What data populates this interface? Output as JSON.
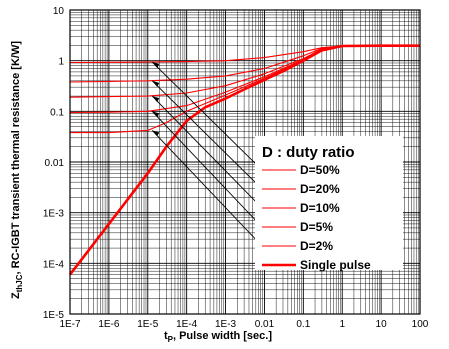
{
  "chart_data": {
    "type": "line",
    "title": "",
    "xlabel_main": "t",
    "xlabel_sub": "P",
    "xlabel_rest": ", Pulse width [sec.]",
    "ylabel_main": "Z",
    "ylabel_sub": "thJC",
    "ylabel_rest": ", RC-IGBT transient thermal resistance [K/W]",
    "xscale": "log",
    "yscale": "log",
    "xlim": [
      1e-07,
      100
    ],
    "ylim": [
      1e-05,
      10
    ],
    "grid": true,
    "legend_placement": "center-right",
    "x_tick_labels": [
      "1E-7",
      "1E-6",
      "1E-5",
      "1E-4",
      "1E-3",
      "0.01",
      "0.1",
      "1",
      "10",
      "100"
    ],
    "y_tick_labels": [
      "1E-5",
      "1E-4",
      "1E-3",
      "0.01",
      "0.1",
      "1",
      "10"
    ],
    "legend_title": "D : duty ratio",
    "colors": {
      "curve": "#ff0000",
      "grid": "#000000",
      "frame": "#000000"
    },
    "series": [
      {
        "name": "D=50%",
        "x": [
          1e-07,
          1e-06,
          1e-05,
          0.0001,
          0.001,
          0.01,
          0.1,
          0.3,
          1,
          10,
          100
        ],
        "y": [
          0.92,
          0.93,
          0.94,
          0.96,
          1.0,
          1.15,
          1.5,
          1.8,
          1.95,
          1.97,
          1.97
        ]
      },
      {
        "name": "D=20%",
        "x": [
          1e-07,
          1e-06,
          1e-05,
          0.0001,
          0.001,
          0.01,
          0.1,
          0.3,
          1,
          10,
          100
        ],
        "y": [
          0.38,
          0.39,
          0.4,
          0.43,
          0.5,
          0.7,
          1.25,
          1.75,
          1.95,
          1.97,
          1.97
        ]
      },
      {
        "name": "D=10%",
        "x": [
          1e-07,
          1e-06,
          1e-05,
          0.0001,
          0.001,
          0.01,
          0.1,
          0.3,
          1,
          10,
          100
        ],
        "y": [
          0.19,
          0.195,
          0.2,
          0.23,
          0.32,
          0.55,
          1.1,
          1.7,
          1.95,
          1.97,
          1.97
        ]
      },
      {
        "name": "D=5%",
        "x": [
          1e-07,
          1e-06,
          1e-05,
          0.0001,
          0.001,
          0.01,
          0.1,
          0.3,
          1,
          10,
          100
        ],
        "y": [
          0.095,
          0.096,
          0.1,
          0.13,
          0.24,
          0.48,
          1.05,
          1.65,
          1.95,
          1.97,
          1.97
        ]
      },
      {
        "name": "D=2%",
        "x": [
          1e-07,
          1e-06,
          1e-05,
          3e-05,
          0.0001,
          0.001,
          0.01,
          0.1,
          0.3,
          1,
          10,
          100
        ],
        "y": [
          0.038,
          0.038,
          0.042,
          0.06,
          0.1,
          0.21,
          0.45,
          1.02,
          1.62,
          1.95,
          1.97,
          1.97
        ]
      },
      {
        "name": "Single pulse",
        "x": [
          1e-07,
          1e-06,
          1e-05,
          3e-05,
          0.0001,
          0.0003,
          0.001,
          0.003,
          0.01,
          0.03,
          0.1,
          0.3,
          1,
          10,
          100
        ],
        "y": [
          6e-05,
          0.0006,
          0.006,
          0.02,
          0.065,
          0.12,
          0.18,
          0.27,
          0.42,
          0.62,
          1.0,
          1.6,
          1.95,
          1.97,
          1.97
        ],
        "bold": true
      }
    ]
  }
}
